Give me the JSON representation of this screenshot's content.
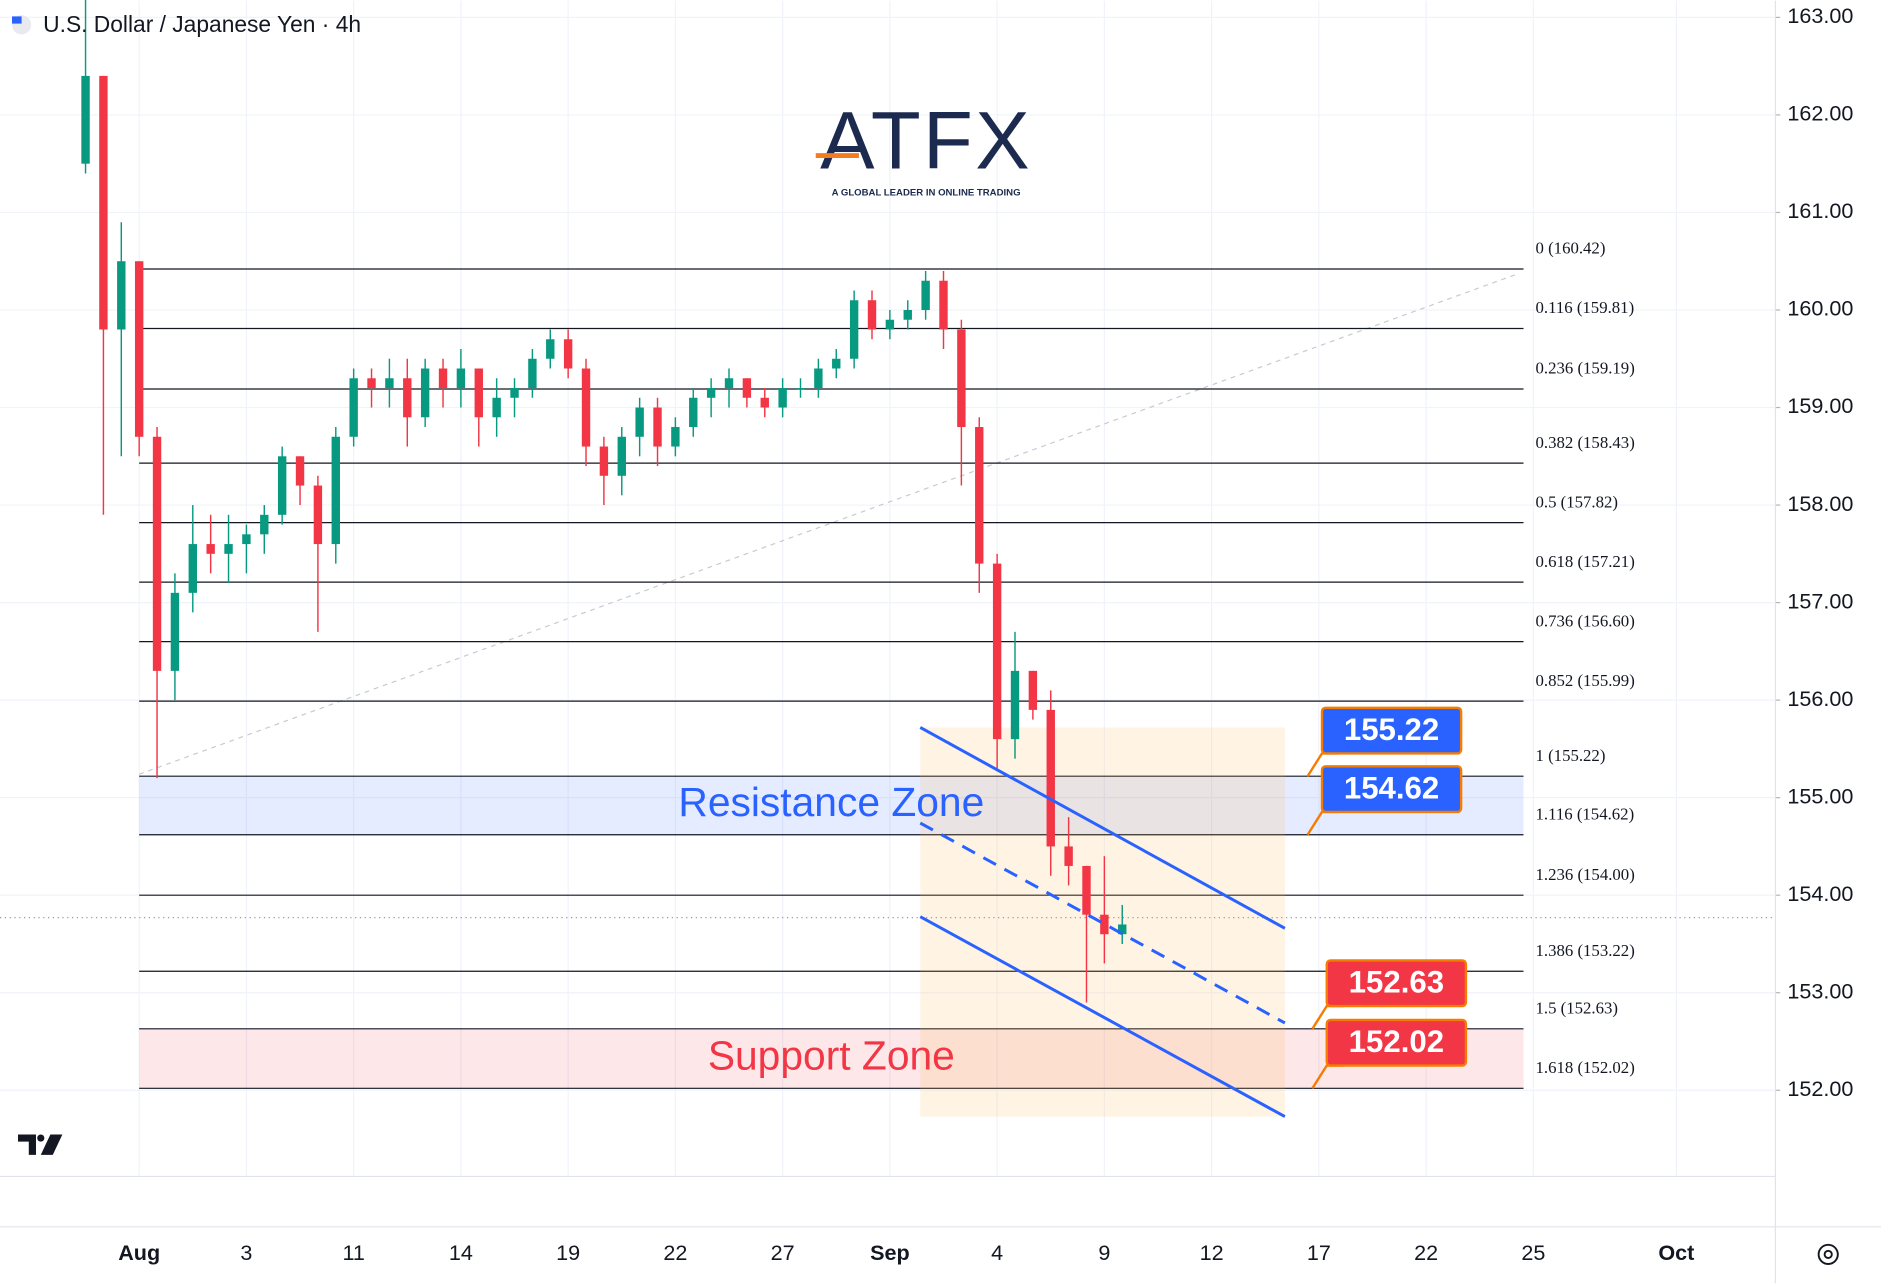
{
  "header": {
    "title": "U.S. Dollar / Japanese Yen · 4h"
  },
  "watermark": {
    "brand": "ATFX",
    "tagline": "A GLOBAL LEADER IN ONLINE TRADING"
  },
  "chart_data": {
    "type": "candlestick",
    "x": [
      -1.5,
      -1,
      -0.5,
      0,
      0.5,
      1,
      1.5,
      2,
      2.5,
      3,
      3.5,
      4,
      4.5,
      5,
      5.5,
      6,
      6.5,
      7,
      7.5,
      8,
      8.5,
      9,
      9.5,
      10,
      10.5,
      11,
      11.5,
      12,
      12.5,
      13,
      13.5,
      14,
      14.5,
      15,
      15.5,
      16,
      16.5,
      17,
      17.5,
      18,
      18.5,
      19,
      19.5,
      20,
      20.5,
      21,
      21.5,
      22,
      22.5,
      23,
      23.5,
      24,
      24.5,
      25,
      25.5,
      26,
      26.5,
      27,
      27.5
    ],
    "open": [
      161.5,
      162.4,
      159.8,
      160.5,
      158.7,
      156.3,
      157.1,
      157.6,
      157.5,
      157.6,
      157.7,
      157.9,
      158.5,
      158.2,
      157.6,
      158.7,
      159.3,
      159.2,
      159.3,
      158.9,
      159.4,
      159.2,
      159.4,
      158.9,
      159.1,
      159.2,
      159.5,
      159.7,
      159.4,
      158.6,
      158.3,
      158.7,
      159.0,
      158.6,
      158.8,
      159.1,
      159.2,
      159.3,
      159.1,
      159.0,
      159.2,
      159.2,
      159.4,
      159.5,
      160.1,
      159.8,
      159.9,
      160.0,
      160.3,
      159.8,
      158.8,
      157.4,
      155.6,
      156.3,
      155.9,
      154.5,
      154.3,
      153.8,
      153.6
    ],
    "high": [
      163.2,
      162.4,
      160.9,
      160.5,
      158.8,
      157.3,
      158.0,
      157.9,
      157.9,
      157.8,
      158.0,
      158.6,
      158.5,
      158.3,
      158.8,
      159.4,
      159.4,
      159.5,
      159.5,
      159.5,
      159.5,
      159.6,
      159.4,
      159.3,
      159.3,
      159.6,
      159.8,
      159.8,
      159.5,
      158.7,
      158.8,
      159.1,
      159.1,
      158.9,
      159.2,
      159.3,
      159.4,
      159.3,
      159.2,
      159.3,
      159.3,
      159.5,
      159.6,
      160.2,
      160.2,
      160.0,
      160.1,
      160.4,
      160.4,
      159.9,
      158.9,
      157.5,
      156.7,
      156.3,
      156.1,
      154.8,
      154.3,
      154.4,
      153.9
    ],
    "low": [
      161.4,
      157.9,
      158.5,
      158.5,
      155.2,
      156.0,
      156.9,
      157.3,
      157.2,
      157.3,
      157.5,
      157.8,
      158.0,
      156.7,
      157.4,
      158.6,
      159.0,
      159.0,
      158.6,
      158.8,
      159.0,
      159.0,
      158.6,
      158.7,
      158.9,
      159.1,
      159.4,
      159.3,
      158.4,
      158.0,
      158.1,
      158.5,
      158.4,
      158.5,
      158.7,
      158.9,
      159.0,
      159.0,
      158.9,
      158.9,
      159.1,
      159.1,
      159.3,
      159.4,
      159.7,
      159.7,
      159.8,
      159.9,
      159.6,
      158.2,
      157.1,
      155.3,
      155.4,
      155.8,
      154.2,
      154.1,
      152.9,
      153.3,
      153.5
    ],
    "close": [
      162.4,
      159.8,
      160.5,
      158.7,
      156.3,
      157.1,
      157.6,
      157.5,
      157.6,
      157.7,
      157.9,
      158.5,
      158.2,
      157.6,
      158.7,
      159.3,
      159.2,
      159.3,
      158.9,
      159.4,
      159.2,
      159.4,
      158.9,
      159.1,
      159.2,
      159.5,
      159.7,
      159.4,
      158.6,
      158.3,
      158.7,
      159.0,
      158.6,
      158.8,
      159.1,
      159.2,
      159.3,
      159.1,
      159.0,
      159.2,
      159.2,
      159.4,
      159.5,
      160.1,
      159.8,
      159.9,
      160.0,
      160.3,
      159.8,
      158.8,
      157.4,
      155.6,
      156.3,
      155.9,
      154.5,
      154.3,
      153.8,
      153.6,
      153.7
    ],
    "up_color": "#089981",
    "down_color": "#f23645",
    "xlim": [
      -3.893,
      45.772
    ],
    "xticks": [
      {
        "value": 0,
        "label": "Aug"
      },
      3,
      {
        "value": 6,
        "label": "11"
      },
      {
        "value": 9,
        "label": "14"
      },
      {
        "value": 12,
        "label": "19"
      },
      {
        "value": 15,
        "label": "22"
      },
      {
        "value": 18,
        "label": "27"
      },
      {
        "value": 21,
        "label": "Sep"
      },
      {
        "value": 24,
        "label": "4"
      },
      {
        "value": 27,
        "label": "9"
      },
      {
        "value": 30,
        "label": "12"
      },
      {
        "value": 33,
        "label": "17"
      },
      {
        "value": 36,
        "label": "22"
      },
      {
        "value": 39,
        "label": "25"
      },
      {
        "value": 43,
        "label": "Oct"
      }
    ],
    "ylim": [
      150.6,
      163.17
    ],
    "yticks": [
      {
        "value": 152,
        "label": "152.00"
      },
      {
        "value": 153,
        "label": "153.00"
      },
      {
        "value": 154,
        "label": "154.00"
      },
      {
        "value": 155,
        "label": "155.00"
      },
      {
        "value": 156,
        "label": "156.00"
      },
      {
        "value": 157,
        "label": "157.00"
      },
      {
        "value": 158,
        "label": "158.00"
      },
      {
        "value": 159,
        "label": "159.00"
      },
      {
        "value": 160,
        "label": "160.00"
      },
      {
        "value": 161,
        "label": "161.00"
      },
      {
        "value": 162,
        "label": "162.00"
      },
      {
        "value": 163,
        "label": "163.00"
      }
    ],
    "grid": true,
    "last_price": 153.77,
    "fibonacci": [
      {
        "label": "0 (160.42)",
        "value": 160.42
      },
      {
        "label": "0.116 (159.81)",
        "value": 159.81
      },
      {
        "label": "0.236 (159.19)",
        "value": 159.19
      },
      {
        "label": "0.382 (158.43)",
        "value": 158.43
      },
      {
        "label": "0.5 (157.82)",
        "value": 157.82
      },
      {
        "label": "0.618 (157.21)",
        "value": 157.21
      },
      {
        "label": "0.736 (156.60)",
        "value": 156.6
      },
      {
        "label": "0.852 (155.99)",
        "value": 155.99
      },
      {
        "label": "1 (155.22)",
        "value": 155.22
      },
      {
        "label": "1.116 (154.62)",
        "value": 154.62
      },
      {
        "label": "1.236 (154.00)",
        "value": 154.0
      },
      {
        "label": "1.386 (153.22)",
        "value": 153.22
      },
      {
        "label": "1.5 (152.63)",
        "value": 152.63
      },
      {
        "label": "1.618 (152.02)",
        "value": 152.02
      }
    ],
    "zones": [
      {
        "label": "Resistance Zone",
        "from": 154.62,
        "to": 155.22,
        "color": "#2962ff"
      },
      {
        "label": "Support Zone",
        "from": 152.02,
        "to": 152.63,
        "color": "#f23645"
      }
    ],
    "price_tags": [
      {
        "value": 155.22,
        "color": "#2962ff"
      },
      {
        "value": 154.62,
        "color": "#2962ff"
      },
      {
        "value": 152.63,
        "color": "#f23645"
      },
      {
        "value": 152.02,
        "color": "#f23645"
      }
    ],
    "channel": {
      "x": [
        21.85,
        32.05
      ],
      "upper": [
        155.72,
        153.66
      ],
      "middle": [
        154.74,
        152.69
      ],
      "lower": [
        153.78,
        151.73
      ]
    },
    "trendline": {
      "x": [
        0,
        38.56
      ],
      "y": [
        155.24,
        160.37
      ]
    }
  }
}
